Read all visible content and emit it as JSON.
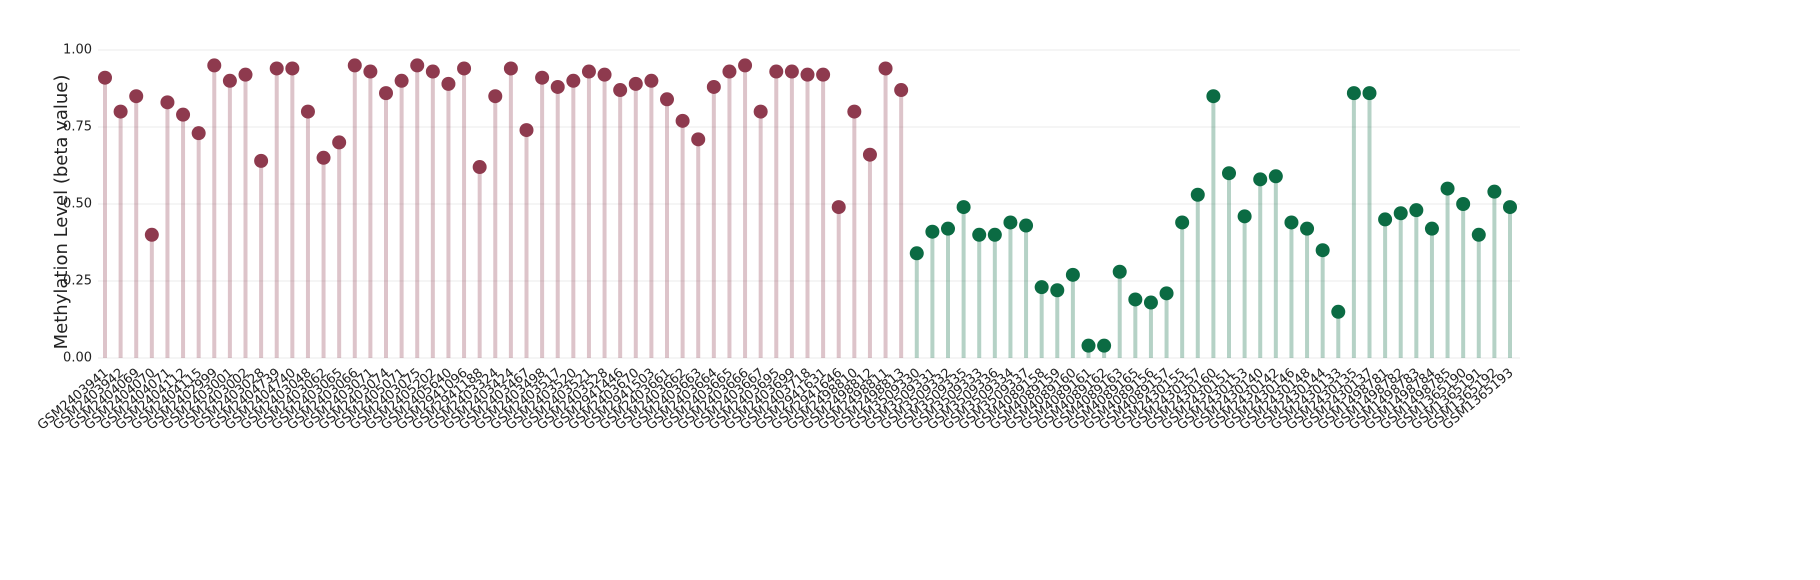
{
  "chart_data": {
    "type": "lollipop",
    "ylabel": "Methylation Level (beta value)",
    "ylim": [
      0,
      1
    ],
    "yticks": [
      {
        "value": 0,
        "label": "0.00"
      },
      {
        "value": 0.25,
        "label": "0.25"
      },
      {
        "value": 0.5,
        "label": "0.50"
      },
      {
        "value": 0.75,
        "label": "0.75"
      },
      {
        "value": 1,
        "label": "1.00"
      }
    ],
    "grid": true,
    "categories": [
      "GSM2403941",
      "GSM2403942",
      "GSM2404069",
      "GSM2404070",
      "GSM2404071",
      "GSM2404112",
      "GSM2404115",
      "GSM2402999",
      "GSM2403001",
      "GSM2403002",
      "GSM2403028",
      "GSM2404739",
      "GSM2404740",
      "GSM2403048",
      "GSM2403062",
      "GSM2403065",
      "GSM2403066",
      "GSM2403071",
      "GSM2403074",
      "GSM2405071",
      "GSM2403075",
      "GSM2405202",
      "GSM2405640",
      "GSM2941096",
      "GSM2941188",
      "GSM2403324",
      "GSM2403424",
      "GSM2403467",
      "GSM2403498",
      "GSM2403517",
      "GSM2403520",
      "GSM2403521",
      "GSM2403528",
      "GSM2941446",
      "GSM2403670",
      "GSM2941503",
      "GSM2403661",
      "GSM2403662",
      "GSM2403663",
      "GSM2403664",
      "GSM2403665",
      "GSM2403666",
      "GSM2403667",
      "GSM2403695",
      "GSM2403699",
      "GSM2403718",
      "GSM2941631",
      "GSM2941646",
      "GSM2498810",
      "GSM2498812",
      "GSM2498811",
      "GSM2498813",
      "GSM3509330",
      "GSM3509331",
      "GSM3509332",
      "GSM3509335",
      "GSM3509333",
      "GSM3509336",
      "GSM3509334",
      "GSM3509337",
      "GSM4089158",
      "GSM4089159",
      "GSM4089160",
      "GSM4089161",
      "GSM4089162",
      "GSM4089163",
      "GSM4089165",
      "GSM4089156",
      "GSM4089157",
      "GSM2430155",
      "GSM2430157",
      "GSM2430160",
      "GSM2430151",
      "GSM2430153",
      "GSM2430140",
      "GSM2430142",
      "GSM2430146",
      "GSM2430148",
      "GSM2430144",
      "GSM2430133",
      "GSM2430135",
      "GSM2430137",
      "GSM1498781",
      "GSM1498782",
      "GSM1498783",
      "GSM1498784",
      "GSM1498785",
      "GSM1365190",
      "GSM1365191",
      "GSM1365192",
      "GSM1365193"
    ],
    "values": [
      0.91,
      0.8,
      0.85,
      0.4,
      0.83,
      0.79,
      0.73,
      0.95,
      0.9,
      0.92,
      0.64,
      0.94,
      0.94,
      0.8,
      0.65,
      0.7,
      0.95,
      0.93,
      0.86,
      0.9,
      0.95,
      0.93,
      0.89,
      0.94,
      0.62,
      0.85,
      0.94,
      0.74,
      0.91,
      0.88,
      0.9,
      0.93,
      0.92,
      0.87,
      0.89,
      0.9,
      0.84,
      0.77,
      0.71,
      0.88,
      0.93,
      0.95,
      0.8,
      0.93,
      0.93,
      0.92,
      0.92,
      0.49,
      0.8,
      0.66,
      0.94,
      0.87,
      0.34,
      0.41,
      0.42,
      0.49,
      0.4,
      0.4,
      0.44,
      0.43,
      0.23,
      0.22,
      0.27,
      0.04,
      0.04,
      0.28,
      0.19,
      0.18,
      0.21,
      0.44,
      0.53,
      0.85,
      0.6,
      0.46,
      0.58,
      0.59,
      0.44,
      0.42,
      0.35,
      0.15,
      0.86,
      0.86,
      0.45,
      0.47,
      0.48,
      0.42,
      0.55,
      0.5,
      0.4,
      0.54,
      0.49
    ],
    "colors": [
      "#8e3a4e",
      "#8e3a4e",
      "#8e3a4e",
      "#8e3a4e",
      "#8e3a4e",
      "#8e3a4e",
      "#8e3a4e",
      "#8e3a4e",
      "#8e3a4e",
      "#8e3a4e",
      "#8e3a4e",
      "#8e3a4e",
      "#8e3a4e",
      "#8e3a4e",
      "#8e3a4e",
      "#8e3a4e",
      "#8e3a4e",
      "#8e3a4e",
      "#8e3a4e",
      "#8e3a4e",
      "#8e3a4e",
      "#8e3a4e",
      "#8e3a4e",
      "#8e3a4e",
      "#8e3a4e",
      "#8e3a4e",
      "#8e3a4e",
      "#8e3a4e",
      "#8e3a4e",
      "#8e3a4e",
      "#8e3a4e",
      "#8e3a4e",
      "#8e3a4e",
      "#8e3a4e",
      "#8e3a4e",
      "#8e3a4e",
      "#8e3a4e",
      "#8e3a4e",
      "#8e3a4e",
      "#8e3a4e",
      "#8e3a4e",
      "#8e3a4e",
      "#8e3a4e",
      "#8e3a4e",
      "#8e3a4e",
      "#8e3a4e",
      "#8e3a4e",
      "#8e3a4e",
      "#8e3a4e",
      "#8e3a4e",
      "#8e3a4e",
      "#8e3a4e",
      "#0b6b43",
      "#0b6b43",
      "#0b6b43",
      "#0b6b43",
      "#0b6b43",
      "#0b6b43",
      "#0b6b43",
      "#0b6b43",
      "#0b6b43",
      "#0b6b43",
      "#0b6b43",
      "#0b6b43",
      "#0b6b43",
      "#0b6b43",
      "#0b6b43",
      "#0b6b43",
      "#0b6b43",
      "#0b6b43",
      "#0b6b43",
      "#0b6b43",
      "#0b6b43",
      "#0b6b43",
      "#0b6b43",
      "#0b6b43",
      "#0b6b43",
      "#0b6b43",
      "#0b6b43",
      "#0b6b43",
      "#0b6b43",
      "#0b6b43",
      "#0b6b43",
      "#0b6b43",
      "#0b6b43",
      "#0b6b43",
      "#0b6b43",
      "#0b6b43",
      "#0b6b43",
      "#0b6b43",
      "#0b6b43"
    ]
  }
}
